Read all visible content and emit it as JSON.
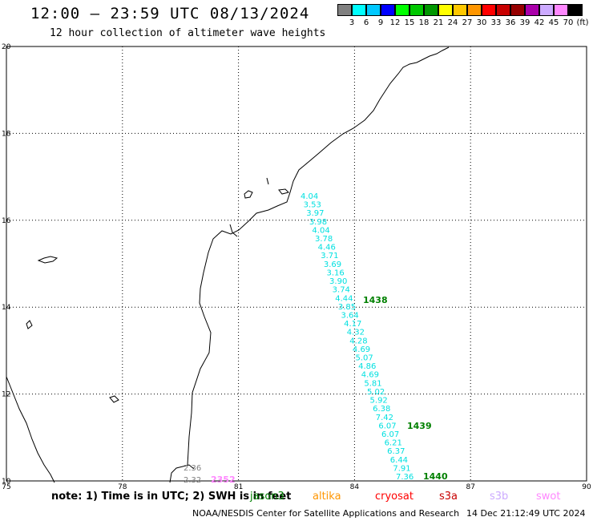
{
  "header": {
    "title": "12:00 – 23:59 UTC 08/13/2024",
    "subtitle": "12 hour collection of altimeter wave heights"
  },
  "legend": {
    "colors": [
      "#808080",
      "#00ffff",
      "#00c8ff",
      "#0000ff",
      "#00ff00",
      "#00c800",
      "#009600",
      "#ffff00",
      "#ffc800",
      "#ff9600",
      "#ff0000",
      "#c80000",
      "#960000",
      "#aa00aa",
      "#ccaaff",
      "#ff88ff",
      "#000000"
    ],
    "levels": [
      "3",
      "6",
      "9",
      "12",
      "15",
      "18",
      "21",
      "24",
      "27",
      "30",
      "33",
      "36",
      "39",
      "42",
      "45",
      "70"
    ],
    "units": "(ft)"
  },
  "axes": {
    "x_ticks": [
      "75",
      "78",
      "81",
      "84",
      "87",
      "90"
    ],
    "y_ticks": [
      "20",
      "18",
      "16",
      "14",
      "12",
      "10"
    ]
  },
  "track": {
    "color": "#00e0e0",
    "heights": [
      "4.04",
      "3.53",
      "3.97",
      "3.98",
      "4.04",
      "3.78",
      "4.46",
      "3.71",
      "3.69",
      "3.16",
      "3.90",
      "3.74",
      "4.44",
      "3.85",
      "3.64",
      "4.17",
      "4.32",
      "4.28",
      "4.69",
      "5.07",
      "4.86",
      "4.69",
      "5.81",
      "5.02",
      "5.92",
      "6.38",
      "7.42",
      "6.07",
      "6.07",
      "6.21",
      "6.37",
      "6.44",
      "7.91",
      "7.36"
    ]
  },
  "time_labels": [
    {
      "text": "1438",
      "color": "#008000"
    },
    {
      "text": "1439",
      "color": "#008000"
    },
    {
      "text": "1440",
      "color": "#008000"
    },
    {
      "text": "2352",
      "color": "#ff88ff"
    }
  ],
  "grey_obs": [
    "2.36",
    "2.32"
  ],
  "footer": {
    "note": "note:  1) Time is in UTC;  2) SWH is in feet",
    "satellites": [
      {
        "name": "jason3",
        "color": "#008000"
      },
      {
        "name": "altika",
        "color": "#ff9600"
      },
      {
        "name": "cryosat",
        "color": "#ff0000"
      },
      {
        "name": "s3a",
        "color": "#c80000"
      },
      {
        "name": "s3b",
        "color": "#ccaaff"
      },
      {
        "name": "swot",
        "color": "#ff88ff"
      }
    ],
    "credit": "NOAA/NESDIS Center for Satellite Applications and Research",
    "timestamp": "14 Dec 21:12:49 UTC 2024"
  }
}
